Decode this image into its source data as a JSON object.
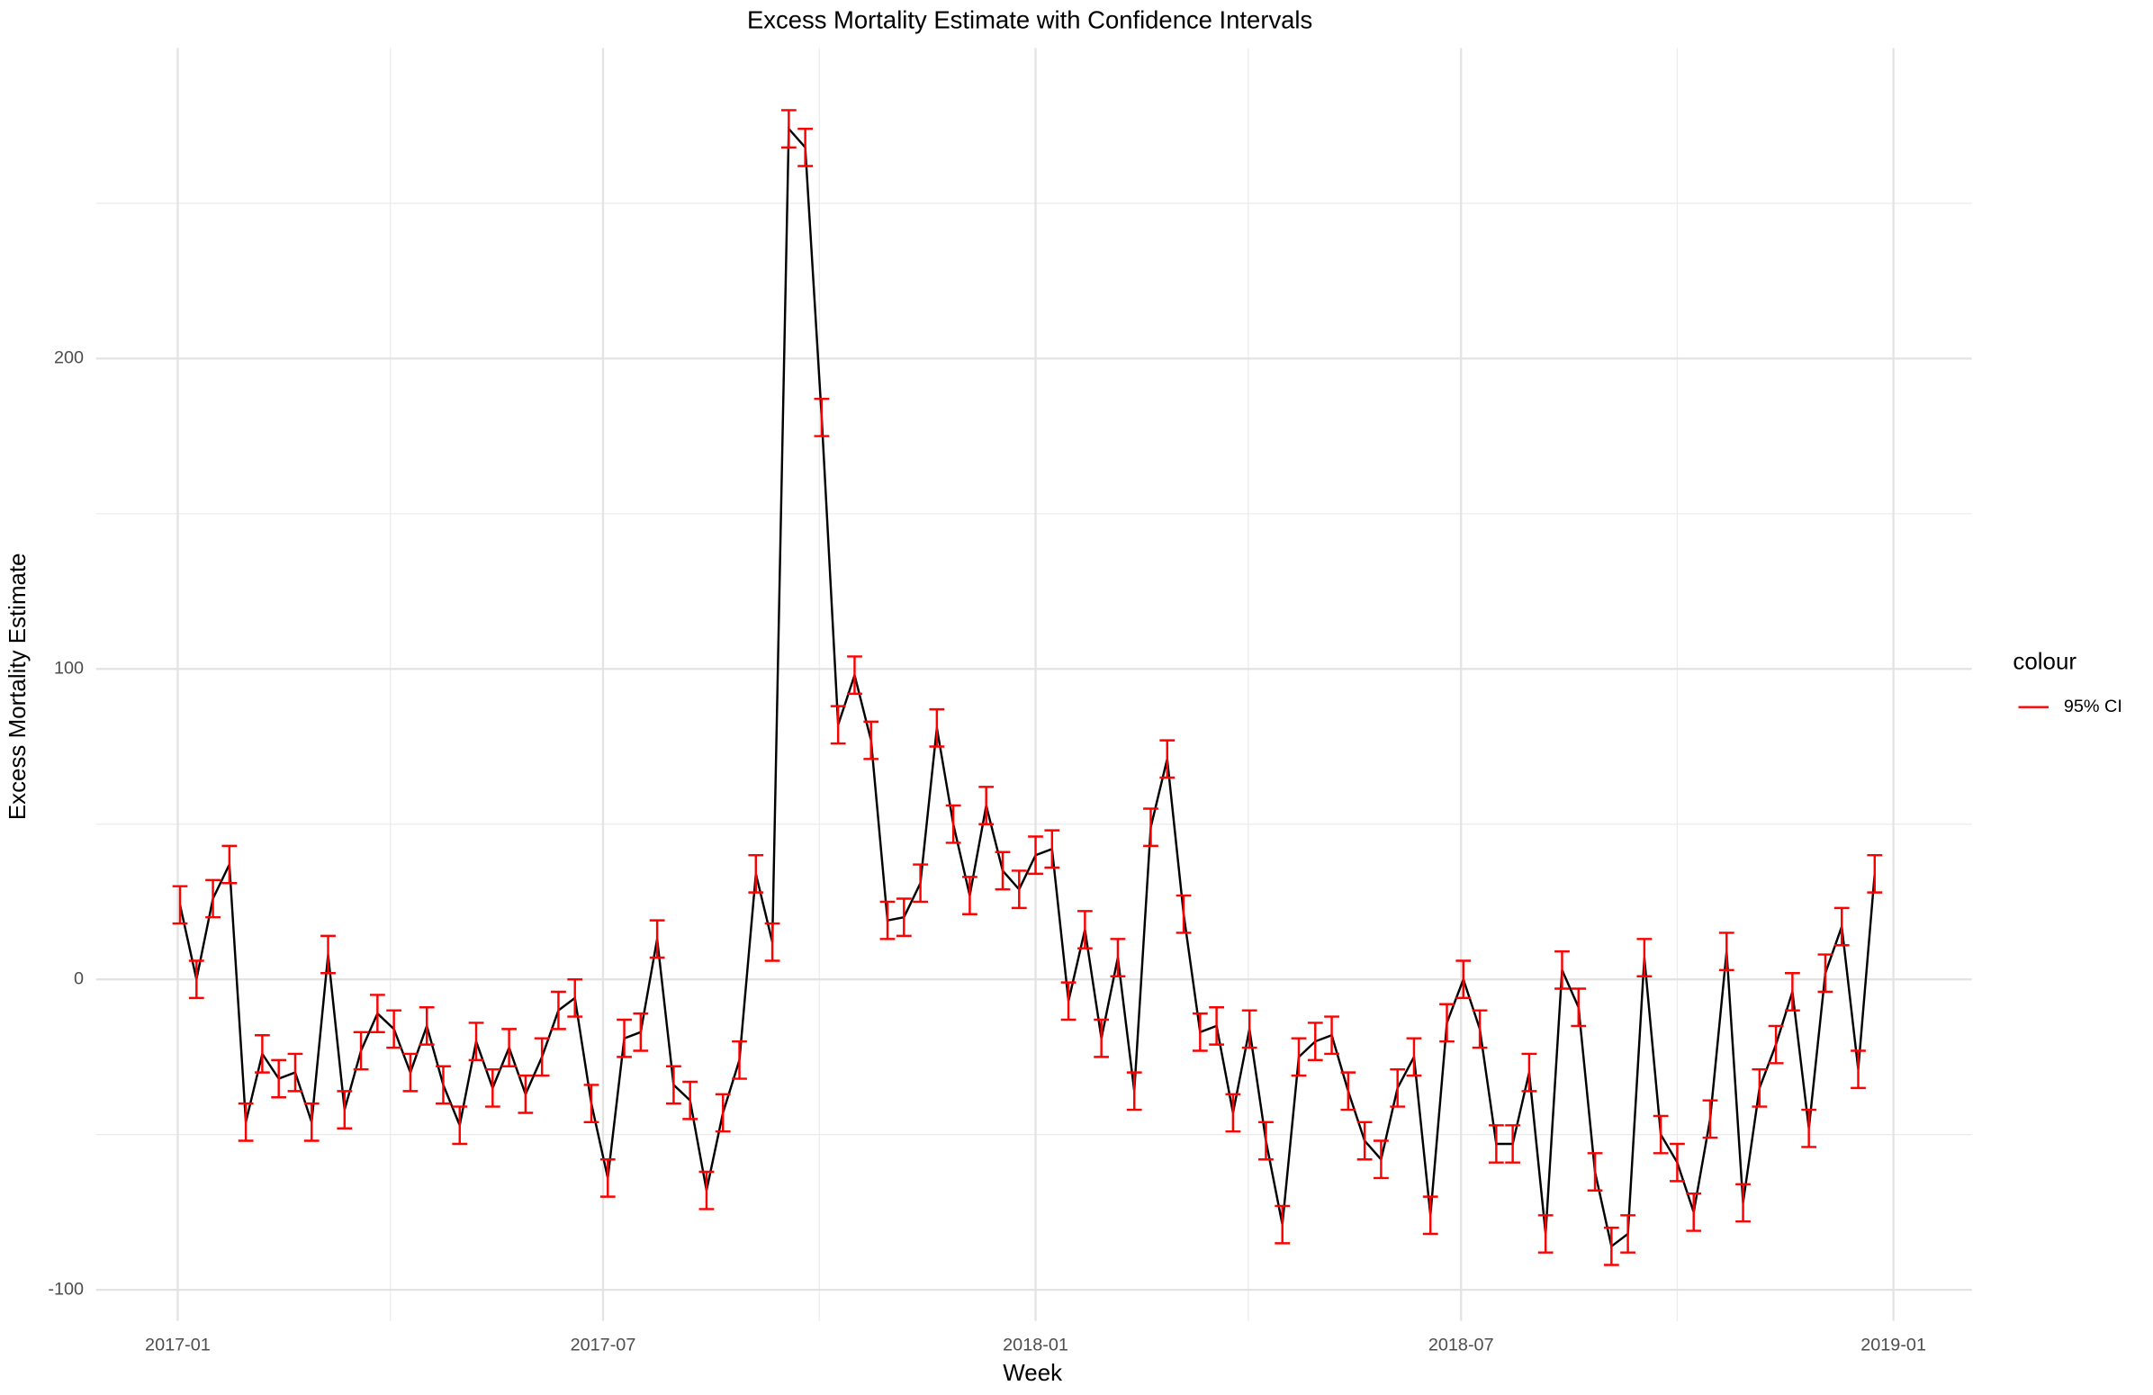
{
  "chart_data": {
    "type": "line",
    "title": "Excess Mortality Estimate with Confidence Intervals",
    "x_label": "Week",
    "y_label": "Excess Mortality Estimate",
    "legend_title": "colour",
    "legend_position": "right",
    "grid": true,
    "line_color": "#000000",
    "x": [
      0,
      1,
      2,
      3,
      4,
      5,
      6,
      7,
      8,
      9,
      10,
      11,
      12,
      13,
      14,
      15,
      16,
      17,
      18,
      19,
      20,
      21,
      22,
      23,
      24,
      25,
      26,
      27,
      28,
      29,
      30,
      31,
      32,
      33,
      34,
      35,
      36,
      37,
      38,
      39,
      40,
      41,
      42,
      43,
      44,
      45,
      46,
      47,
      48,
      49,
      50,
      51,
      52,
      53,
      54,
      55,
      56,
      57,
      58,
      59,
      60,
      61,
      62,
      63,
      64,
      65,
      66,
      67,
      68,
      69,
      70,
      71,
      72,
      73,
      74,
      75,
      76,
      77,
      78,
      79,
      80,
      81,
      82,
      83,
      84,
      85,
      86,
      87,
      88,
      89,
      90,
      91,
      92,
      93,
      94,
      95,
      96,
      97,
      98,
      99,
      100,
      101,
      102,
      103
    ],
    "values": [
      24,
      0,
      26,
      37,
      -46,
      -24,
      -32,
      -30,
      -46,
      8,
      -42,
      -23,
      -11,
      -16,
      -30,
      -15,
      -34,
      -47,
      -20,
      -35,
      -22,
      -37,
      -25,
      -10,
      -6,
      -40,
      -64,
      -19,
      -17,
      13,
      -34,
      -39,
      -68,
      -43,
      -26,
      34,
      12,
      274,
      268,
      181,
      82,
      98,
      77,
      19,
      20,
      31,
      81,
      50,
      27,
      56,
      35,
      29,
      40,
      42,
      -7,
      16,
      -19,
      7,
      -36,
      49,
      71,
      21,
      -17,
      -15,
      -43,
      -16,
      -52,
      -79,
      -25,
      -20,
      -18,
      -36,
      -52,
      -58,
      -35,
      -25,
      -76,
      -14,
      0,
      -16,
      -53,
      -53,
      -30,
      -82,
      3,
      -9,
      -62,
      -86,
      -82,
      7,
      -50,
      -59,
      -75,
      -45,
      9,
      -72,
      -35,
      -21,
      -4,
      -48,
      2,
      17,
      -29,
      34
    ],
    "error_bars": {
      "name": "95% CI",
      "color": "#ff0000",
      "errors": [
        6,
        6,
        6,
        6,
        6,
        6,
        6,
        6,
        6,
        6,
        6,
        6,
        6,
        6,
        6,
        6,
        6,
        6,
        6,
        6,
        6,
        6,
        6,
        6,
        6,
        6,
        6,
        6,
        6,
        6,
        6,
        6,
        6,
        6,
        6,
        6,
        6,
        6,
        6,
        6,
        6,
        6,
        6,
        6,
        6,
        6,
        6,
        6,
        6,
        6,
        6,
        6,
        6,
        6,
        6,
        6,
        6,
        6,
        6,
        6,
        6,
        6,
        6,
        6,
        6,
        6,
        6,
        6,
        6,
        6,
        6,
        6,
        6,
        6,
        6,
        6,
        6,
        6,
        6,
        6,
        6,
        6,
        6,
        6,
        6,
        6,
        6,
        6,
        6,
        6,
        6,
        6,
        6,
        6,
        6,
        6,
        6,
        6,
        6,
        6,
        6,
        6,
        6,
        6
      ]
    },
    "xlim": [
      -5.1,
      108.9
    ],
    "ylim": [
      -110,
      300
    ],
    "xticks": [
      {
        "value": -0.14,
        "label": "2017-01"
      },
      {
        "value": 25.71,
        "label": "2017-07"
      },
      {
        "value": 52.0,
        "label": "2018-01"
      },
      {
        "value": 77.86,
        "label": "2018-07"
      },
      {
        "value": 104.14,
        "label": "2019-01"
      }
    ],
    "yticks": [
      -100,
      0,
      100,
      200
    ]
  }
}
